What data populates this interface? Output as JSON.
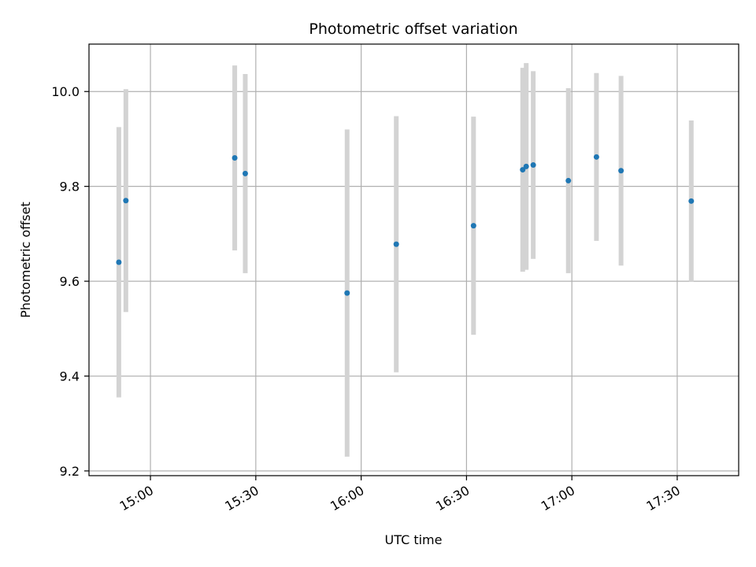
{
  "chart_data": {
    "type": "scatter",
    "title": "Photometric offset variation",
    "xlabel": "UTC time",
    "ylabel": "Photometric offset",
    "x_ticks": [
      "15:00",
      "15:30",
      "16:00",
      "16:30",
      "17:00",
      "17:30"
    ],
    "x_tick_minutes": [
      900,
      930,
      960,
      990,
      1020,
      1050
    ],
    "xlim_minutes": [
      882.5,
      1067.5
    ],
    "y_ticks": [
      "9.2",
      "9.4",
      "9.6",
      "9.8",
      "10.0"
    ],
    "y_tick_values": [
      9.2,
      9.4,
      9.6,
      9.8,
      10.0
    ],
    "ylim": [
      9.19,
      10.1
    ],
    "grid": true,
    "series": [
      {
        "marker_color": "#1f77b4",
        "errorbar_color": "#d3d3d3",
        "points": [
          {
            "time": "14:51",
            "y": 9.64,
            "err": 0.285
          },
          {
            "time": "14:53",
            "y": 9.77,
            "err": 0.235
          },
          {
            "time": "15:24",
            "y": 9.86,
            "err": 0.195
          },
          {
            "time": "15:27",
            "y": 9.827,
            "err": 0.21
          },
          {
            "time": "15:56",
            "y": 9.575,
            "err": 0.345
          },
          {
            "time": "16:10",
            "y": 9.678,
            "err": 0.27
          },
          {
            "time": "16:32",
            "y": 9.717,
            "err": 0.23
          },
          {
            "time": "16:46",
            "y": 9.835,
            "err": 0.215
          },
          {
            "time": "16:47",
            "y": 9.842,
            "err": 0.218
          },
          {
            "time": "16:49",
            "y": 9.845,
            "err": 0.198
          },
          {
            "time": "16:59",
            "y": 9.812,
            "err": 0.195
          },
          {
            "time": "17:07",
            "y": 9.862,
            "err": 0.177
          },
          {
            "time": "17:14",
            "y": 9.833,
            "err": 0.2
          },
          {
            "time": "17:34",
            "y": 9.769,
            "err": 0.17
          }
        ]
      }
    ]
  }
}
